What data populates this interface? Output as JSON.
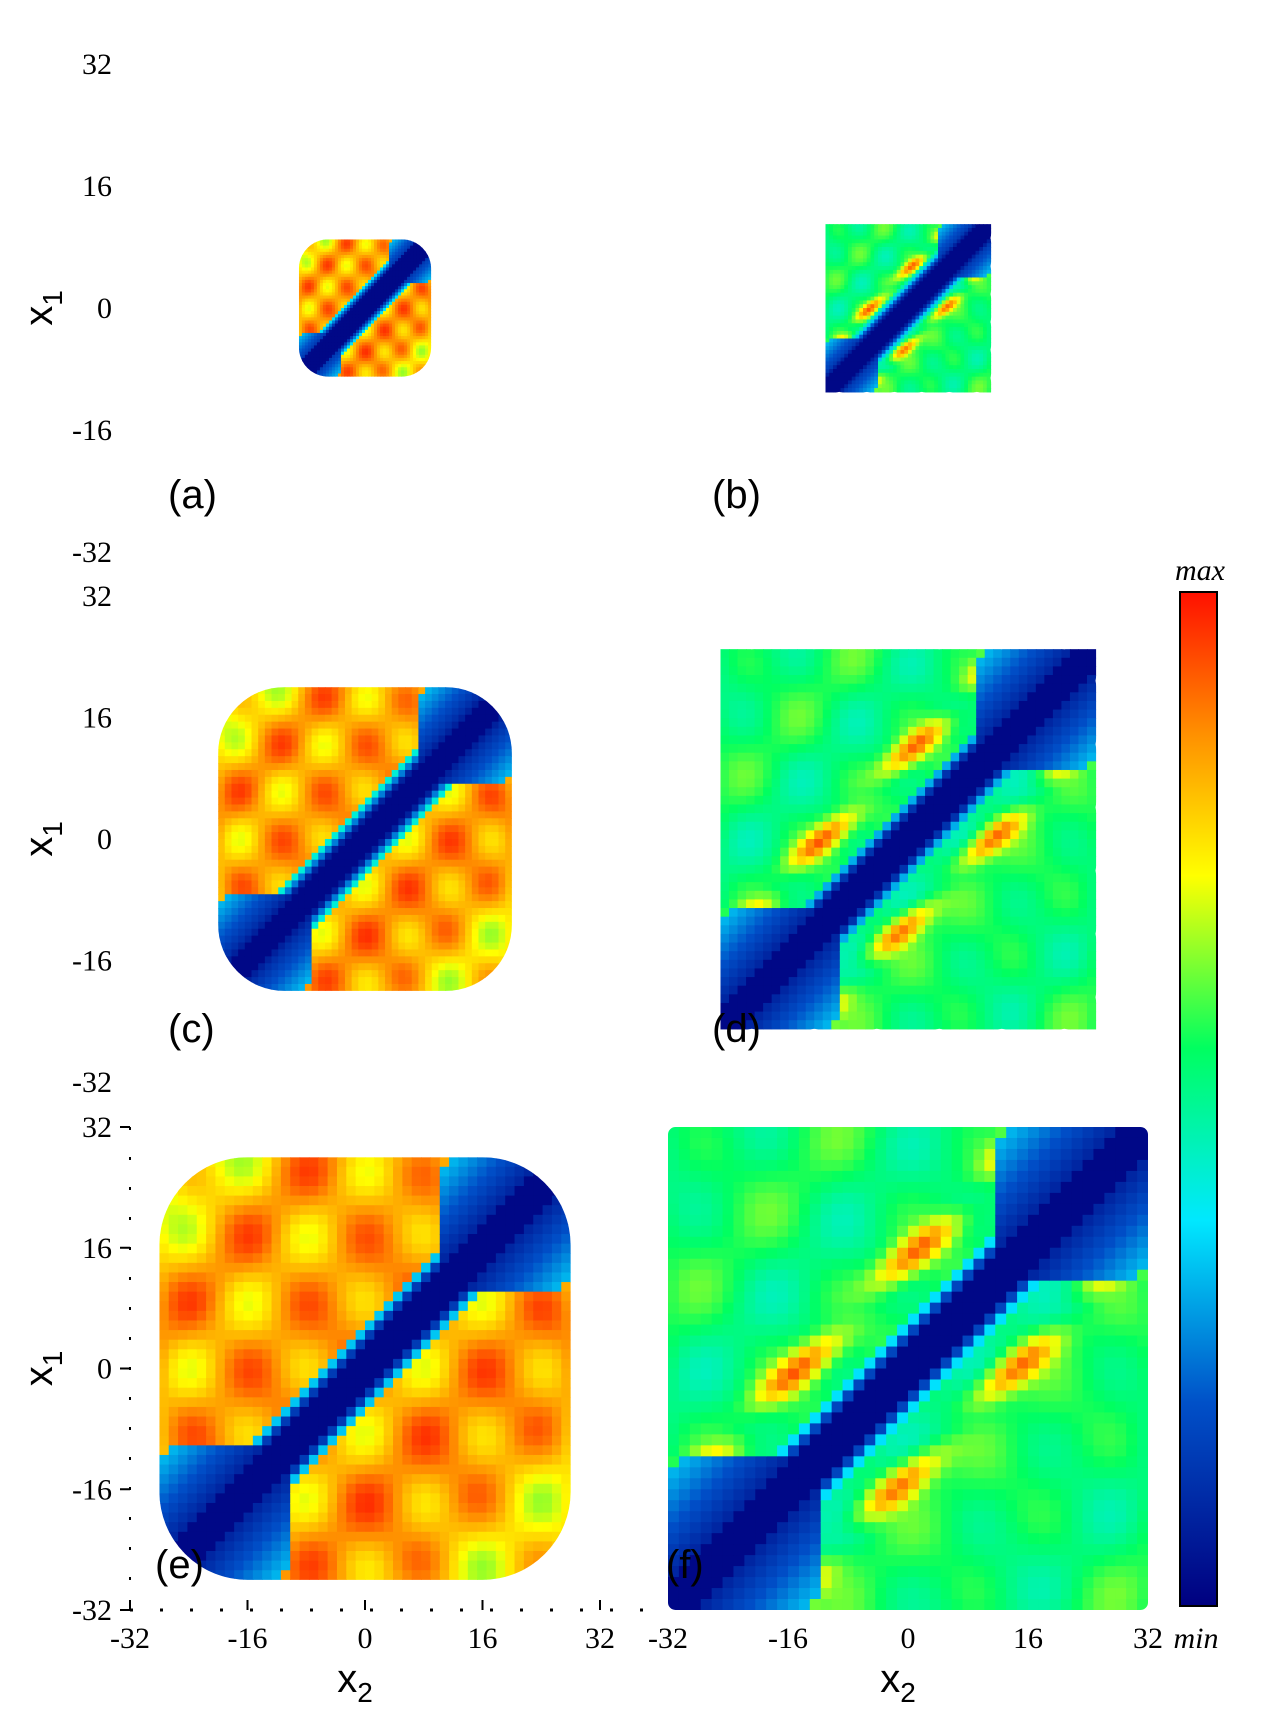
{
  "chart_data": {
    "type": "heatmap",
    "description_free": true,
    "colorbar": {
      "max_label": "max",
      "min_label": "min",
      "colors": [
        "#000080",
        "#0050c8",
        "#00c8ff",
        "#00ff80",
        "#ffff00",
        "#ff8000",
        "#ff0000"
      ]
    },
    "axes": {
      "ylabel_text": "x",
      "ylabel_sub": "1",
      "xlabel_text": "x",
      "xlabel_sub": "2",
      "yticks": [
        "32",
        "16",
        "0",
        "-16",
        "-32"
      ],
      "xticks": [
        "-32",
        "-16",
        "0",
        "16",
        "32"
      ],
      "range": [
        -32,
        32
      ]
    },
    "panels": [
      {
        "id": "a",
        "label": "(a)",
        "half_width": 9,
        "corner": 4,
        "wavy": false,
        "palette": "warm"
      },
      {
        "id": "b",
        "label": "(b)",
        "half_width": 11,
        "corner": 3,
        "wavy": true,
        "palette": "cool"
      },
      {
        "id": "c",
        "label": "(c)",
        "half_width": 20,
        "corner": 9,
        "wavy": false,
        "palette": "warm"
      },
      {
        "id": "d",
        "label": "(d)",
        "half_width": 25,
        "corner": 5,
        "wavy": true,
        "palette": "cool"
      },
      {
        "id": "e",
        "label": "(e)",
        "half_width": 28,
        "corner": 12,
        "wavy": false,
        "palette": "warm"
      },
      {
        "id": "f",
        "label": "(f)",
        "half_width": 32,
        "corner": 1,
        "wavy": false,
        "palette": "cool"
      }
    ]
  }
}
